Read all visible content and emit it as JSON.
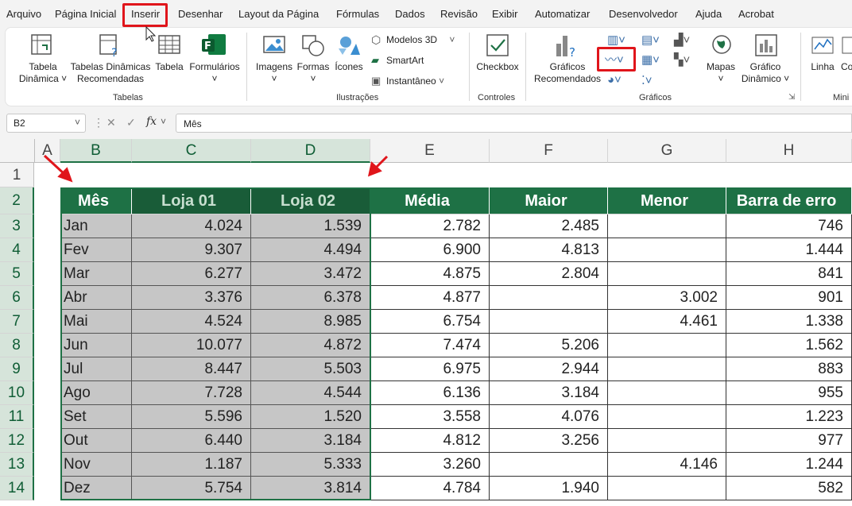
{
  "menu": [
    "Arquivo",
    "Página Inicial",
    "Inserir",
    "Desenhar",
    "Layout da Página",
    "Fórmulas",
    "Dados",
    "Revisão",
    "Exibir",
    "Automatizar",
    "Desenvolvedor",
    "Ajuda",
    "Acrobat"
  ],
  "ribbon": {
    "tabelas": {
      "pivot": "Tabela\nDinâmica ˅",
      "recommended": "Tabelas Dinâmicas\nRecomendadas",
      "table": "Tabela",
      "forms": "Formulários\n˅",
      "label": "Tabelas"
    },
    "ilustracoes": {
      "images": "Imagens\n˅",
      "shapes": "Formas\n˅",
      "icons": "Ícones",
      "models3d": "Modelos 3D",
      "smartart": "SmartArt",
      "snapshot": "Instantâneo",
      "label": "Ilustrações"
    },
    "controles": {
      "checkbox": "Checkbox",
      "label": "Controles"
    },
    "graficos": {
      "recommended": "Gráficos\nRecomendados",
      "maps": "Mapas\n˅",
      "pivotchart": "Gráfico\nDinâmico ˅",
      "label": "Gráficos"
    },
    "mini": {
      "line": "Linha",
      "col": "Co",
      "label": "Mini"
    }
  },
  "formula_bar": {
    "name_box": "B2",
    "fx": "fx",
    "content": "Mês"
  },
  "columns": [
    "A",
    "B",
    "C",
    "D",
    "E",
    "F",
    "G",
    "H"
  ],
  "rows": [
    "1",
    "2",
    "3",
    "4",
    "5",
    "6",
    "7",
    "8",
    "9",
    "10",
    "11",
    "12",
    "13",
    "14"
  ],
  "table": {
    "headers": [
      "Mês",
      "Loja 01",
      "Loja 02",
      "Média",
      "Maior",
      "Menor",
      "Barra de erro"
    ],
    "rows": [
      [
        "Jan",
        "4.024",
        "1.539",
        "2.782",
        "2.485",
        "",
        "746"
      ],
      [
        "Fev",
        "9.307",
        "4.494",
        "6.900",
        "4.813",
        "",
        "1.444"
      ],
      [
        "Mar",
        "6.277",
        "3.472",
        "4.875",
        "2.804",
        "",
        "841"
      ],
      [
        "Abr",
        "3.376",
        "6.378",
        "4.877",
        "",
        "3.002",
        "901"
      ],
      [
        "Mai",
        "4.524",
        "8.985",
        "6.754",
        "",
        "4.461",
        "1.338"
      ],
      [
        "Jun",
        "10.077",
        "4.872",
        "7.474",
        "5.206",
        "",
        "1.562"
      ],
      [
        "Jul",
        "8.447",
        "5.503",
        "6.975",
        "2.944",
        "",
        "883"
      ],
      [
        "Ago",
        "7.728",
        "4.544",
        "6.136",
        "3.184",
        "",
        "955"
      ],
      [
        "Set",
        "5.596",
        "1.520",
        "3.558",
        "4.076",
        "",
        "1.223"
      ],
      [
        "Out",
        "6.440",
        "3.184",
        "4.812",
        "3.256",
        "",
        "977"
      ],
      [
        "Nov",
        "1.187",
        "5.333",
        "3.260",
        "",
        "4.146",
        "1.244"
      ],
      [
        "Dez",
        "5.754",
        "3.814",
        "4.784",
        "1.940",
        "",
        "582"
      ]
    ]
  },
  "colors": {
    "header_green": "#1e7145",
    "selection_gray": "#c6c6c6",
    "highlight_red": "#e0151b",
    "arrow_red": "#e0151b"
  }
}
